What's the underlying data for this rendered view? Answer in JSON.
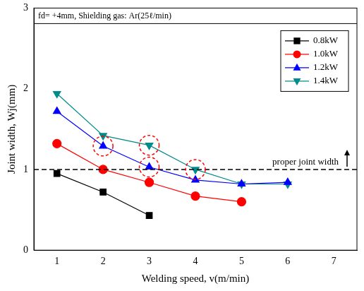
{
  "chart_data": {
    "type": "line",
    "title": "fd= +4mm, Shielding gas: Ar(25ℓ/min)",
    "x_label": "Welding speed, v(m/min)",
    "y_label": "Joint width, Wj(mm)",
    "x": [
      1,
      2,
      3,
      4,
      5,
      6
    ],
    "series": [
      {
        "name": "0.8kW",
        "color": "#000000",
        "marker": "square",
        "values": [
          0.95,
          0.72,
          0.43,
          null,
          null,
          null
        ]
      },
      {
        "name": "1.0kW",
        "color": "#ff0000",
        "marker": "circle",
        "values": [
          1.32,
          1.0,
          0.84,
          0.67,
          0.6,
          null
        ]
      },
      {
        "name": "1.2kW",
        "color": "#0000ff",
        "marker": "triangle",
        "values": [
          1.72,
          1.29,
          1.03,
          0.87,
          0.82,
          0.84
        ]
      },
      {
        "name": "1.4kW",
        "color": "#008b8b",
        "marker": "triangle_down",
        "values": [
          1.94,
          1.42,
          1.3,
          1.0,
          0.82,
          0.82
        ]
      }
    ],
    "reference_line": {
      "y": 1,
      "label": "proper joint width",
      "line_style": "dashed"
    },
    "highlighted_points": [
      {
        "x": 2,
        "y": 1.29
      },
      {
        "x": 3,
        "y": 1.3
      },
      {
        "x": 3,
        "y": 1.03
      },
      {
        "x": 4,
        "y": 1.0
      }
    ],
    "xlim": [
      0.5,
      7.5
    ],
    "xticks": [
      1,
      2,
      3,
      4,
      5,
      6,
      7
    ],
    "ylim": [
      0,
      3
    ],
    "yticks": [
      0,
      1,
      2,
      3
    ],
    "grid": false,
    "legend": "upper right"
  }
}
